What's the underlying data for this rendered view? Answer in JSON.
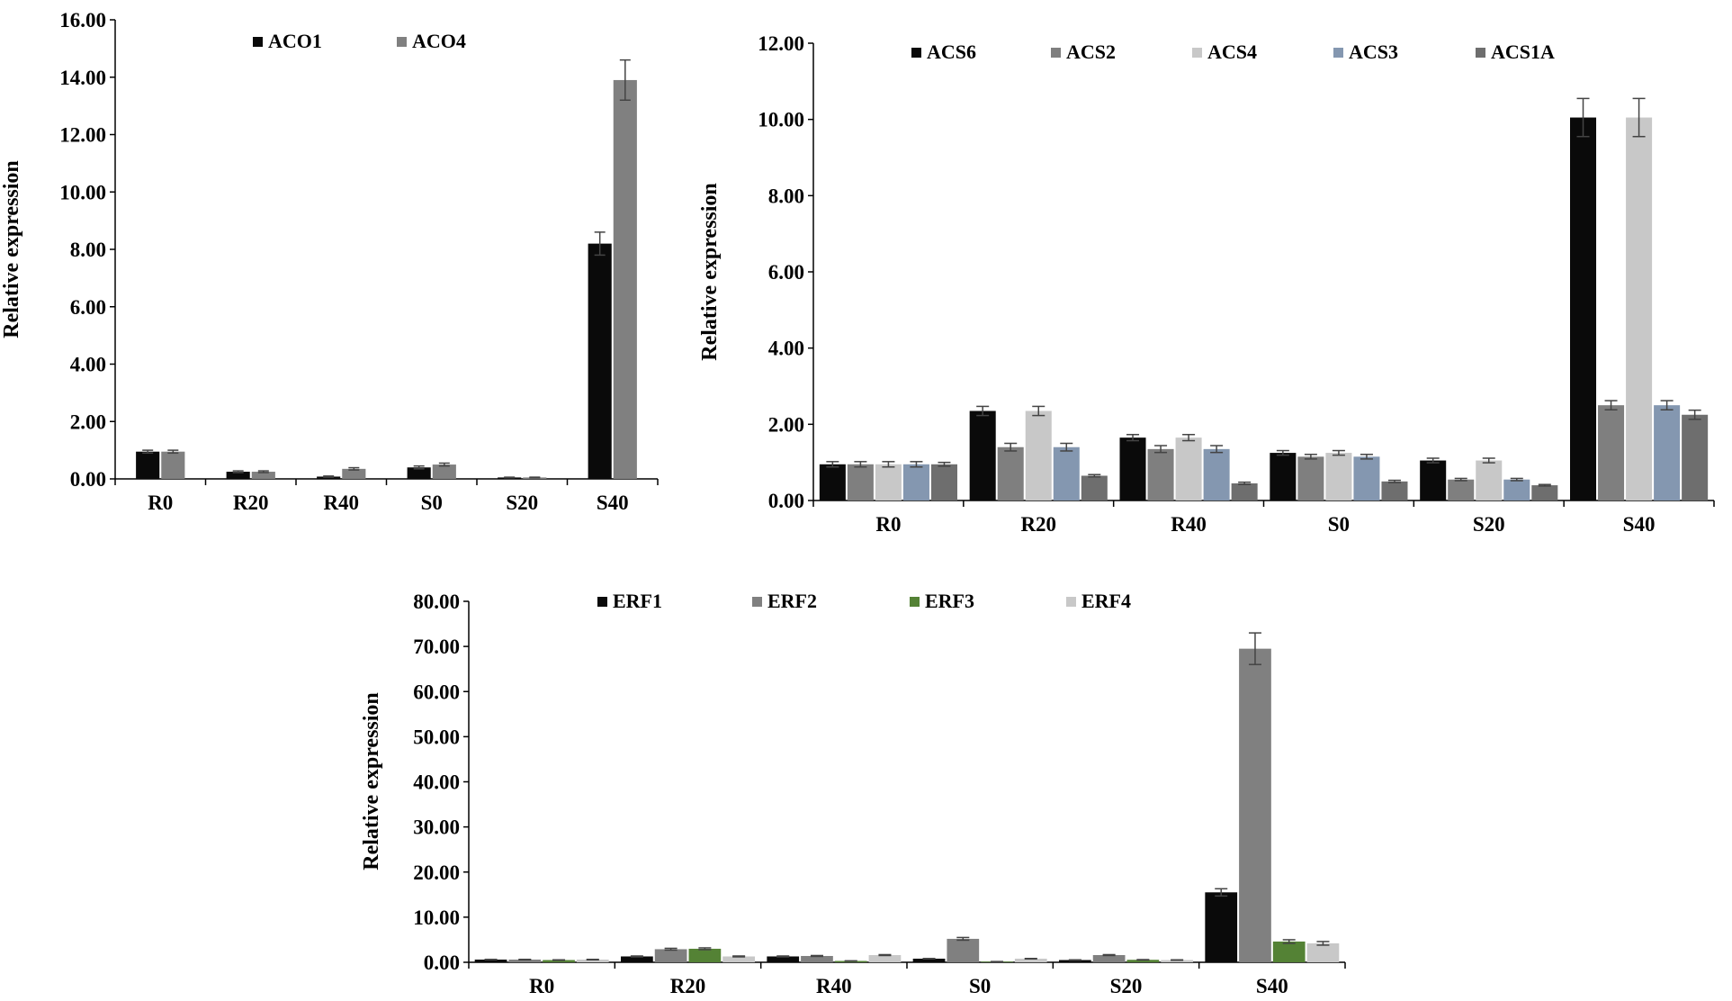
{
  "chart_data": [
    {
      "type": "bar",
      "title": "",
      "xlabel": "",
      "ylabel": "Relative expression",
      "ylim": [
        0,
        16
      ],
      "ytick_step": 2,
      "ytick_labels": [
        "0.00",
        "2.00",
        "4.00",
        "6.00",
        "8.00",
        "10.00",
        "12.00",
        "14.00",
        "16.00"
      ],
      "categories": [
        "R0",
        "R20",
        "R40",
        "S0",
        "S20",
        "S40"
      ],
      "legend_position": "top",
      "series": [
        {
          "name": "ACO1",
          "color": "#0a0a0a",
          "values": [
            0.95,
            0.25,
            0.08,
            0.4,
            0.05,
            8.2
          ],
          "errors": [
            0.05,
            0.03,
            0.02,
            0.05,
            0.01,
            0.4
          ]
        },
        {
          "name": "ACO4",
          "color": "#808080",
          "values": [
            0.95,
            0.25,
            0.35,
            0.5,
            0.05,
            13.9
          ],
          "errors": [
            0.05,
            0.03,
            0.04,
            0.05,
            0.01,
            0.7
          ]
        }
      ]
    },
    {
      "type": "bar",
      "title": "",
      "xlabel": "",
      "ylabel": "Relative expression",
      "ylim": [
        0,
        12
      ],
      "ytick_step": 2,
      "ytick_labels": [
        "0.00",
        "2.00",
        "4.00",
        "6.00",
        "8.00",
        "10.00",
        "12.00"
      ],
      "categories": [
        "R0",
        "R20",
        "R40",
        "S0",
        "S20",
        "S40"
      ],
      "legend_position": "top",
      "series": [
        {
          "name": "ACS6",
          "color": "#0a0a0a",
          "values": [
            0.95,
            2.35,
            1.65,
            1.25,
            1.05,
            10.05
          ],
          "errors": [
            0.07,
            0.12,
            0.08,
            0.06,
            0.06,
            0.5
          ]
        },
        {
          "name": "ACS2",
          "color": "#7f7f7f",
          "values": [
            0.95,
            1.4,
            1.35,
            1.15,
            0.55,
            2.5
          ],
          "errors": [
            0.07,
            0.1,
            0.09,
            0.06,
            0.03,
            0.12
          ]
        },
        {
          "name": "ACS4",
          "color": "#c8c8c8",
          "values": [
            0.95,
            2.35,
            1.65,
            1.25,
            1.05,
            10.05
          ],
          "errors": [
            0.07,
            0.12,
            0.08,
            0.06,
            0.06,
            0.5
          ]
        },
        {
          "name": "ACS3",
          "color": "#8497b0",
          "values": [
            0.95,
            1.4,
            1.35,
            1.15,
            0.55,
            2.5
          ],
          "errors": [
            0.07,
            0.1,
            0.09,
            0.06,
            0.03,
            0.12
          ]
        },
        {
          "name": "ACS1A",
          "color": "#6e6e6e",
          "values": [
            0.95,
            0.65,
            0.45,
            0.5,
            0.4,
            2.25
          ],
          "errors": [
            0.05,
            0.03,
            0.03,
            0.03,
            0.02,
            0.12
          ]
        }
      ]
    },
    {
      "type": "bar",
      "title": "",
      "xlabel": "",
      "ylabel": "Relative expression",
      "ylim": [
        0,
        80
      ],
      "ytick_step": 10,
      "ytick_labels": [
        "0.00",
        "10.00",
        "20.00",
        "30.00",
        "40.00",
        "50.00",
        "60.00",
        "70.00",
        "80.00"
      ],
      "categories": [
        "R0",
        "R20",
        "R40",
        "S0",
        "S20",
        "S40"
      ],
      "legend_position": "top",
      "series": [
        {
          "name": "ERF1",
          "color": "#0a0a0a",
          "values": [
            0.6,
            1.3,
            1.3,
            0.8,
            0.5,
            15.5
          ],
          "errors": [
            0.05,
            0.1,
            0.1,
            0.05,
            0.05,
            0.8
          ]
        },
        {
          "name": "ERF2",
          "color": "#808080",
          "values": [
            0.6,
            2.9,
            1.4,
            5.2,
            1.6,
            69.5
          ],
          "errors": [
            0.05,
            0.2,
            0.1,
            0.3,
            0.1,
            3.5
          ]
        },
        {
          "name": "ERF3",
          "color": "#548235",
          "values": [
            0.5,
            3.0,
            0.3,
            0.15,
            0.55,
            4.6
          ],
          "errors": [
            0.05,
            0.2,
            0.03,
            0.02,
            0.05,
            0.4
          ]
        },
        {
          "name": "ERF4",
          "color": "#c8c8c8",
          "values": [
            0.6,
            1.3,
            1.6,
            0.8,
            0.5,
            4.2
          ],
          "errors": [
            0.05,
            0.1,
            0.1,
            0.05,
            0.05,
            0.4
          ]
        }
      ]
    }
  ]
}
